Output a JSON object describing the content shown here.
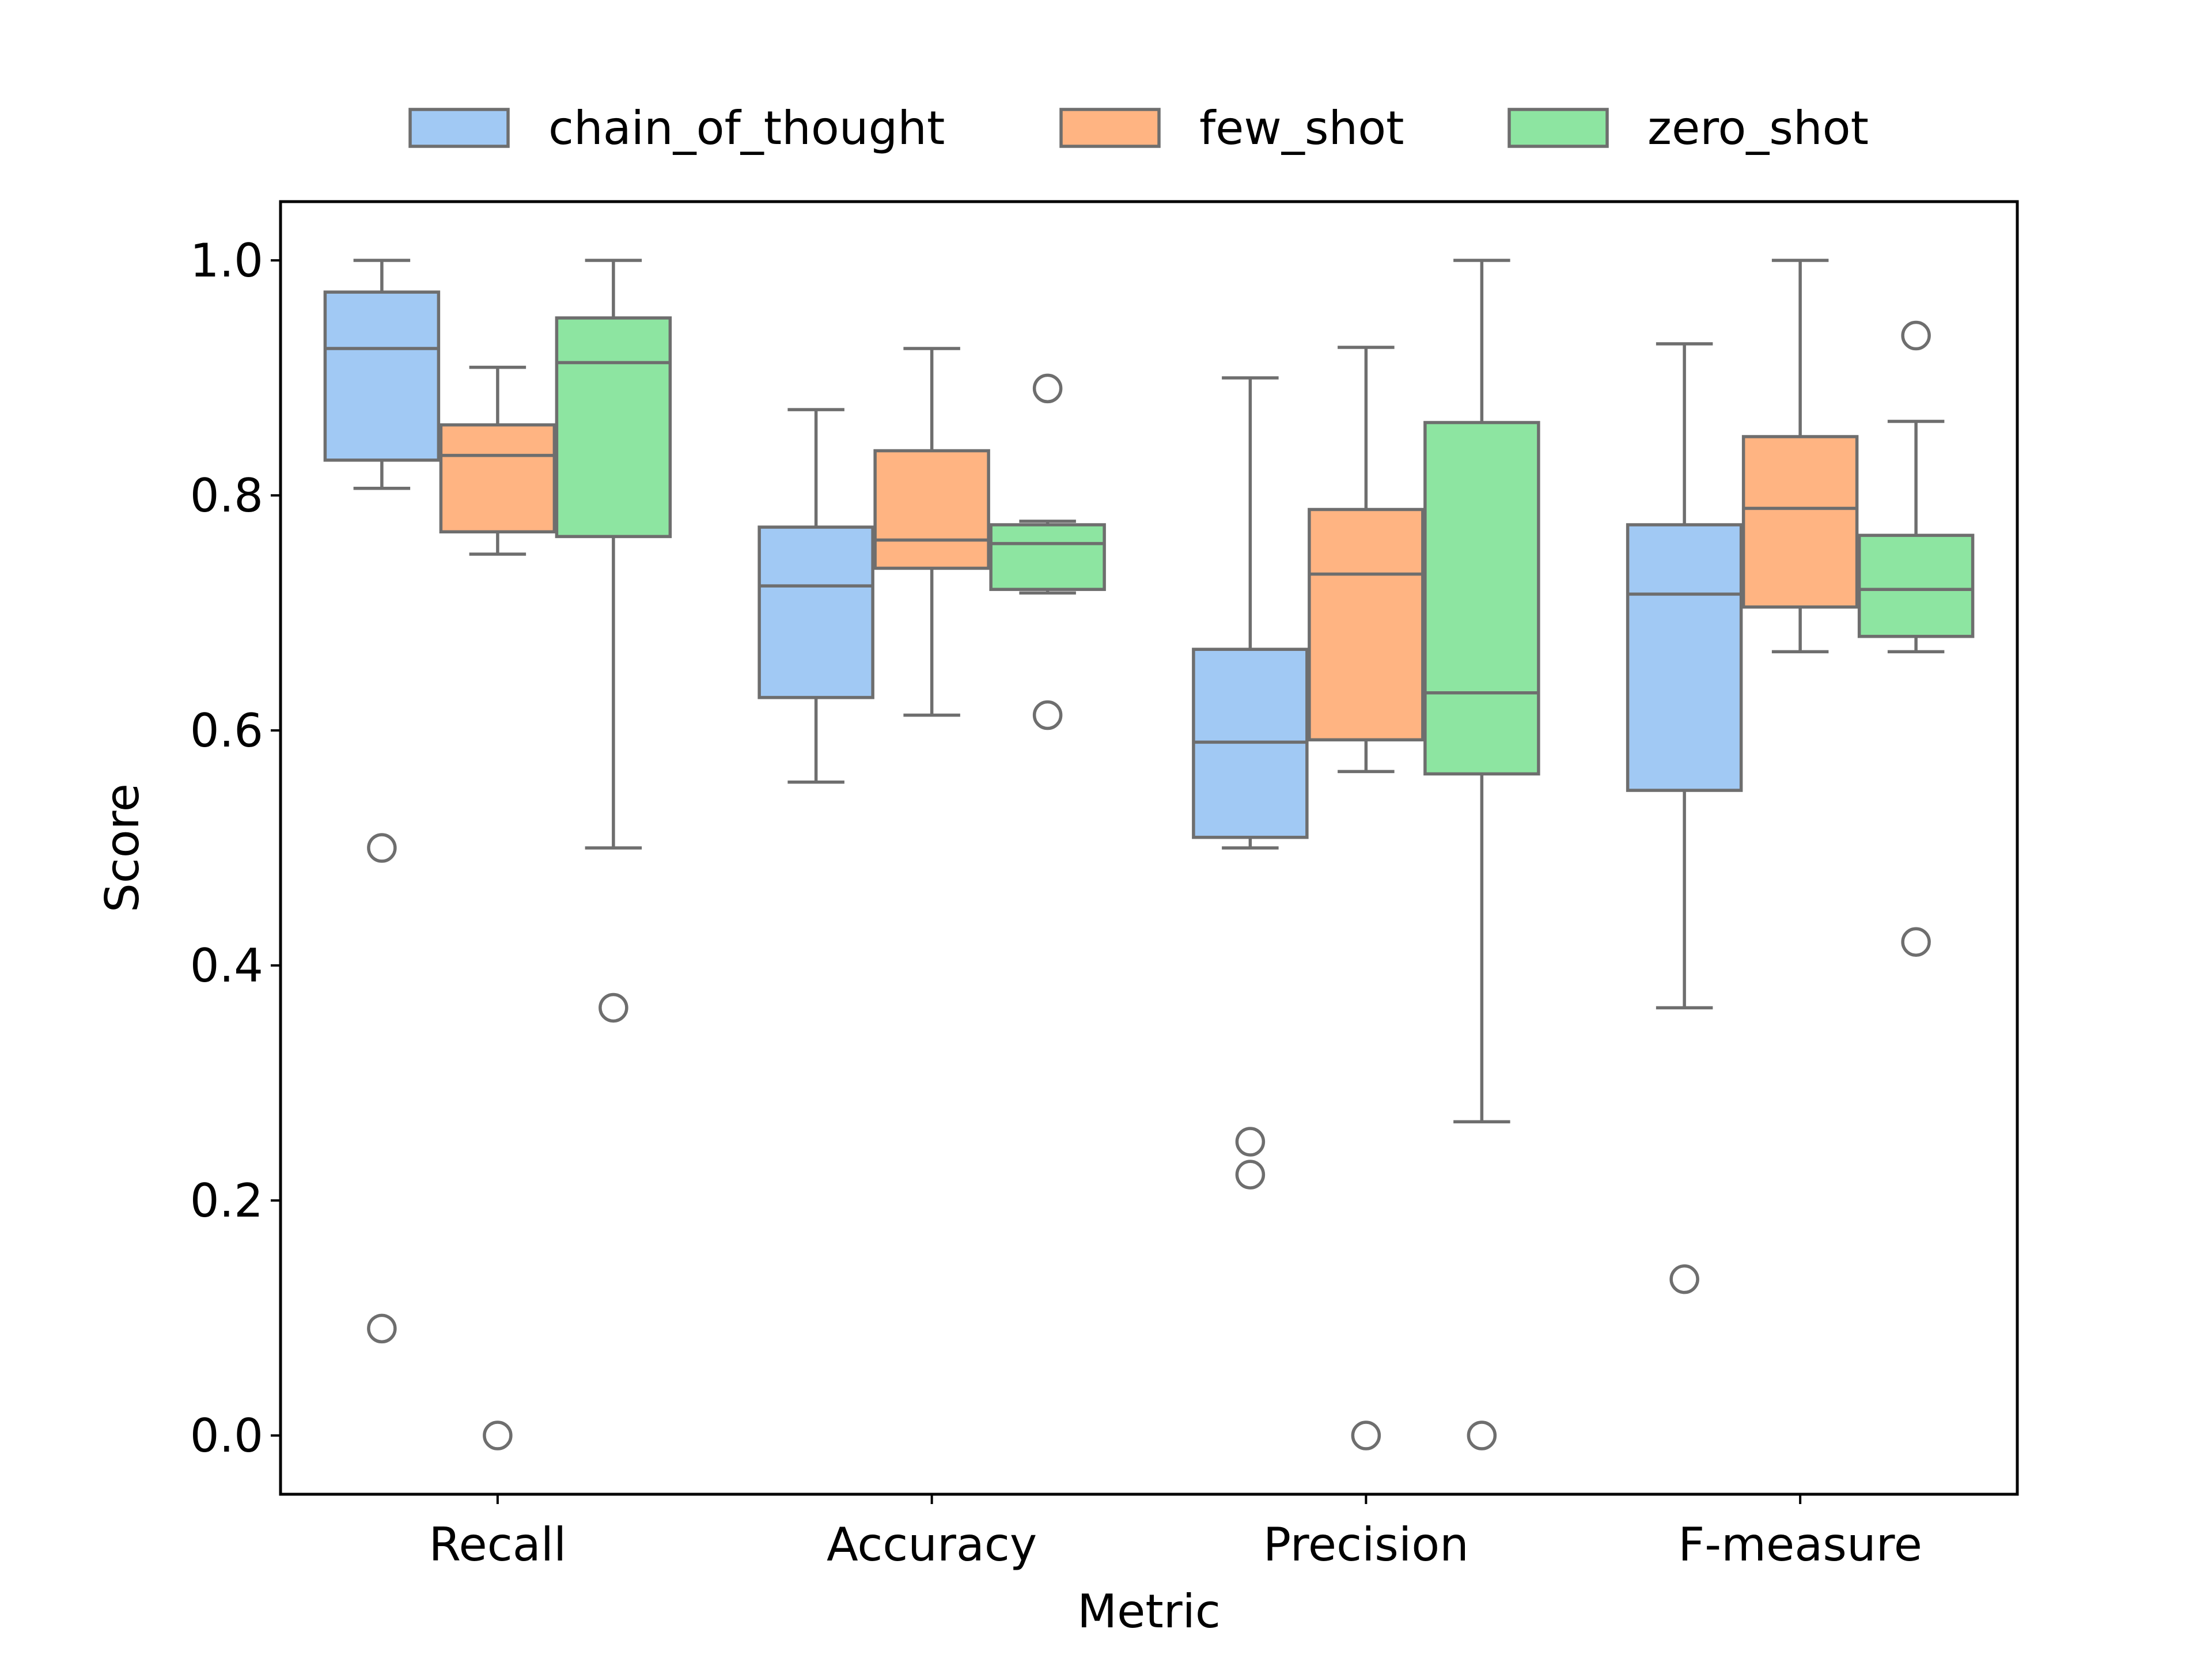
{
  "chart_data": {
    "type": "box",
    "xlabel": "Metric",
    "ylabel": "Score",
    "ylim": [
      -0.05,
      1.05
    ],
    "yticks": [
      0.0,
      0.2,
      0.4,
      0.6,
      0.8,
      1.0
    ],
    "ytick_labels": [
      "0.0",
      "0.2",
      "0.4",
      "0.6",
      "0.8",
      "1.0"
    ],
    "categories": [
      "Recall",
      "Accuracy",
      "Precision",
      "F-measure"
    ],
    "legend_position": "top-center",
    "grid": false,
    "series": [
      {
        "name": "chain_of_thought",
        "color": "#a1c9f4",
        "boxes": [
          {
            "whisker_low": 0.806,
            "q1": 0.83,
            "median": 0.925,
            "q3": 0.973,
            "whisker_high": 1.0,
            "outliers": [
              0.5,
              0.091
            ]
          },
          {
            "whisker_low": 0.556,
            "q1": 0.628,
            "median": 0.723,
            "q3": 0.773,
            "whisker_high": 0.873,
            "outliers": []
          },
          {
            "whisker_low": 0.5,
            "q1": 0.509,
            "median": 0.59,
            "q3": 0.669,
            "whisker_high": 0.9,
            "outliers": [
              0.25,
              0.222
            ]
          },
          {
            "whisker_low": 0.364,
            "q1": 0.549,
            "median": 0.716,
            "q3": 0.775,
            "whisker_high": 0.929,
            "outliers": [
              0.133
            ]
          }
        ]
      },
      {
        "name": "few_shot",
        "color": "#ffb482",
        "boxes": [
          {
            "whisker_low": 0.75,
            "q1": 0.769,
            "median": 0.834,
            "q3": 0.86,
            "whisker_high": 0.909,
            "outliers": [
              0.0
            ]
          },
          {
            "whisker_low": 0.613,
            "q1": 0.738,
            "median": 0.762,
            "q3": 0.838,
            "whisker_high": 0.925,
            "outliers": []
          },
          {
            "whisker_low": 0.565,
            "q1": 0.592,
            "median": 0.733,
            "q3": 0.788,
            "whisker_high": 0.926,
            "outliers": [
              0.0
            ]
          },
          {
            "whisker_low": 0.667,
            "q1": 0.705,
            "median": 0.789,
            "q3": 0.85,
            "whisker_high": 1.0,
            "outliers": []
          }
        ]
      },
      {
        "name": "zero_shot",
        "color": "#8de5a1",
        "boxes": [
          {
            "whisker_low": 0.5,
            "q1": 0.765,
            "median": 0.913,
            "q3": 0.951,
            "whisker_high": 1.0,
            "outliers": [
              0.364
            ]
          },
          {
            "whisker_low": 0.717,
            "q1": 0.72,
            "median": 0.759,
            "q3": 0.775,
            "whisker_high": 0.778,
            "outliers": [
              0.891,
              0.613
            ]
          },
          {
            "whisker_low": 0.267,
            "q1": 0.563,
            "median": 0.632,
            "q3": 0.862,
            "whisker_high": 1.0,
            "outliers": [
              0.0
            ]
          },
          {
            "whisker_low": 0.667,
            "q1": 0.68,
            "median": 0.72,
            "q3": 0.766,
            "whisker_high": 0.863,
            "outliers": [
              0.936,
              0.42
            ]
          }
        ]
      }
    ]
  }
}
